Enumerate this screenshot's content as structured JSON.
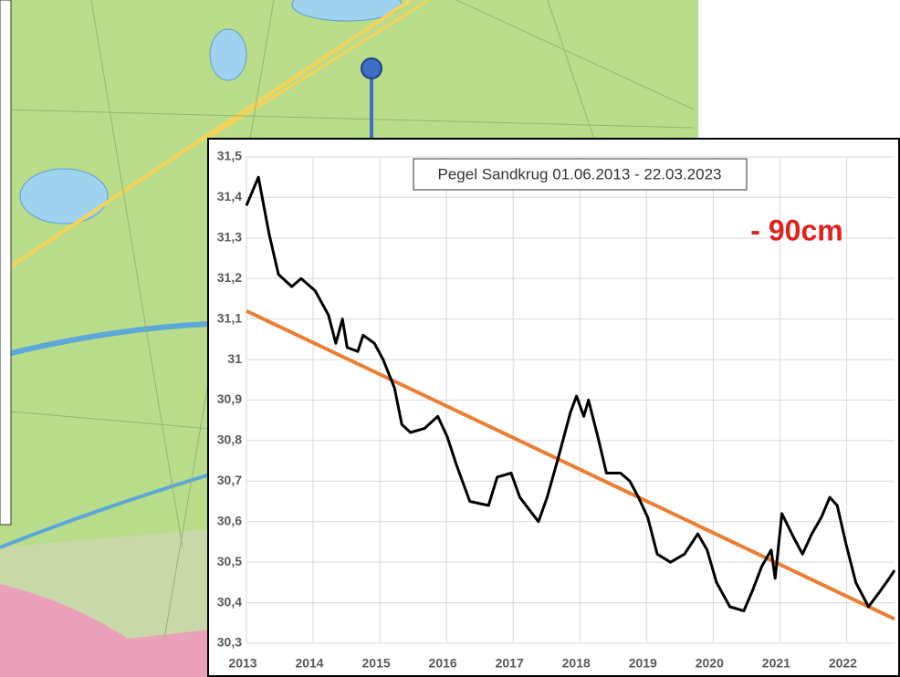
{
  "chart_data": {
    "type": "line",
    "title": "Pegel Sandkrug 01.06.2013 - 22.03.2023",
    "annotation": "- 90cm",
    "xlim": [
      2013,
      2022.72
    ],
    "xticks": [
      2013,
      2014,
      2015,
      2016,
      2017,
      2018,
      2019,
      2020,
      2021,
      2022
    ],
    "ylim": [
      30.3,
      31.5
    ],
    "yticks": [
      {
        "value": 30.3,
        "label": "30,3"
      },
      {
        "value": 30.4,
        "label": "30,4"
      },
      {
        "value": 30.5,
        "label": "30,5"
      },
      {
        "value": 30.6,
        "label": "30,6"
      },
      {
        "value": 30.7,
        "label": "30,7"
      },
      {
        "value": 30.8,
        "label": "30,8"
      },
      {
        "value": 30.9,
        "label": "30,9"
      },
      31,
      {
        "value": 31.1,
        "label": "31,1"
      },
      {
        "value": 31.2,
        "label": "31,2"
      },
      {
        "value": 31.3,
        "label": "31,3"
      },
      {
        "value": 31.4,
        "label": "31,4"
      },
      {
        "value": 31.5,
        "label": "31,5"
      }
    ],
    "grid": true,
    "series": [
      {
        "color": "#000000",
        "x": [
          2013.0,
          2013.18,
          2013.34,
          2013.48,
          2013.68,
          2013.82,
          2014.03,
          2014.23,
          2014.34,
          2014.44,
          2014.51,
          2014.67,
          2014.75,
          2014.92,
          2015.05,
          2015.22,
          2015.33,
          2015.46,
          2015.67,
          2015.87,
          2016.01,
          2016.15,
          2016.35,
          2016.63,
          2016.76,
          2016.97,
          2017.1,
          2017.24,
          2017.38,
          2017.51,
          2017.68,
          2017.86,
          2017.95,
          2018.06,
          2018.13,
          2018.27,
          2018.4,
          2018.61,
          2018.75,
          2018.88,
          2019.02,
          2019.16,
          2019.36,
          2019.57,
          2019.77,
          2019.91,
          2020.05,
          2020.25,
          2020.46,
          2020.59,
          2020.73,
          2020.87,
          2020.93,
          2021.03,
          2021.21,
          2021.34,
          2021.48,
          2021.62,
          2021.75,
          2021.86,
          2022.0,
          2022.14,
          2022.33,
          2022.51,
          2022.64,
          2022.72
        ],
        "values": [
          31.38,
          31.45,
          31.31,
          31.21,
          31.18,
          31.2,
          31.17,
          31.11,
          31.04,
          31.1,
          31.03,
          31.02,
          31.06,
          31.04,
          31.0,
          30.93,
          30.84,
          30.82,
          30.83,
          30.86,
          30.81,
          30.74,
          30.65,
          30.64,
          30.71,
          30.72,
          30.66,
          30.63,
          30.6,
          30.66,
          30.76,
          30.87,
          30.91,
          30.86,
          30.9,
          30.81,
          30.72,
          30.72,
          30.7,
          30.66,
          30.61,
          30.52,
          30.5,
          30.52,
          30.57,
          30.53,
          30.45,
          30.39,
          30.38,
          30.43,
          30.49,
          30.53,
          30.46,
          30.62,
          30.56,
          30.52,
          30.57,
          30.61,
          30.66,
          30.64,
          30.54,
          30.45,
          30.39,
          30.43,
          30.46,
          30.48
        ]
      },
      {
        "color": "#ed7d31",
        "x": [
          2013,
          2022.72
        ],
        "values": [
          31.12,
          30.36
        ]
      }
    ]
  }
}
